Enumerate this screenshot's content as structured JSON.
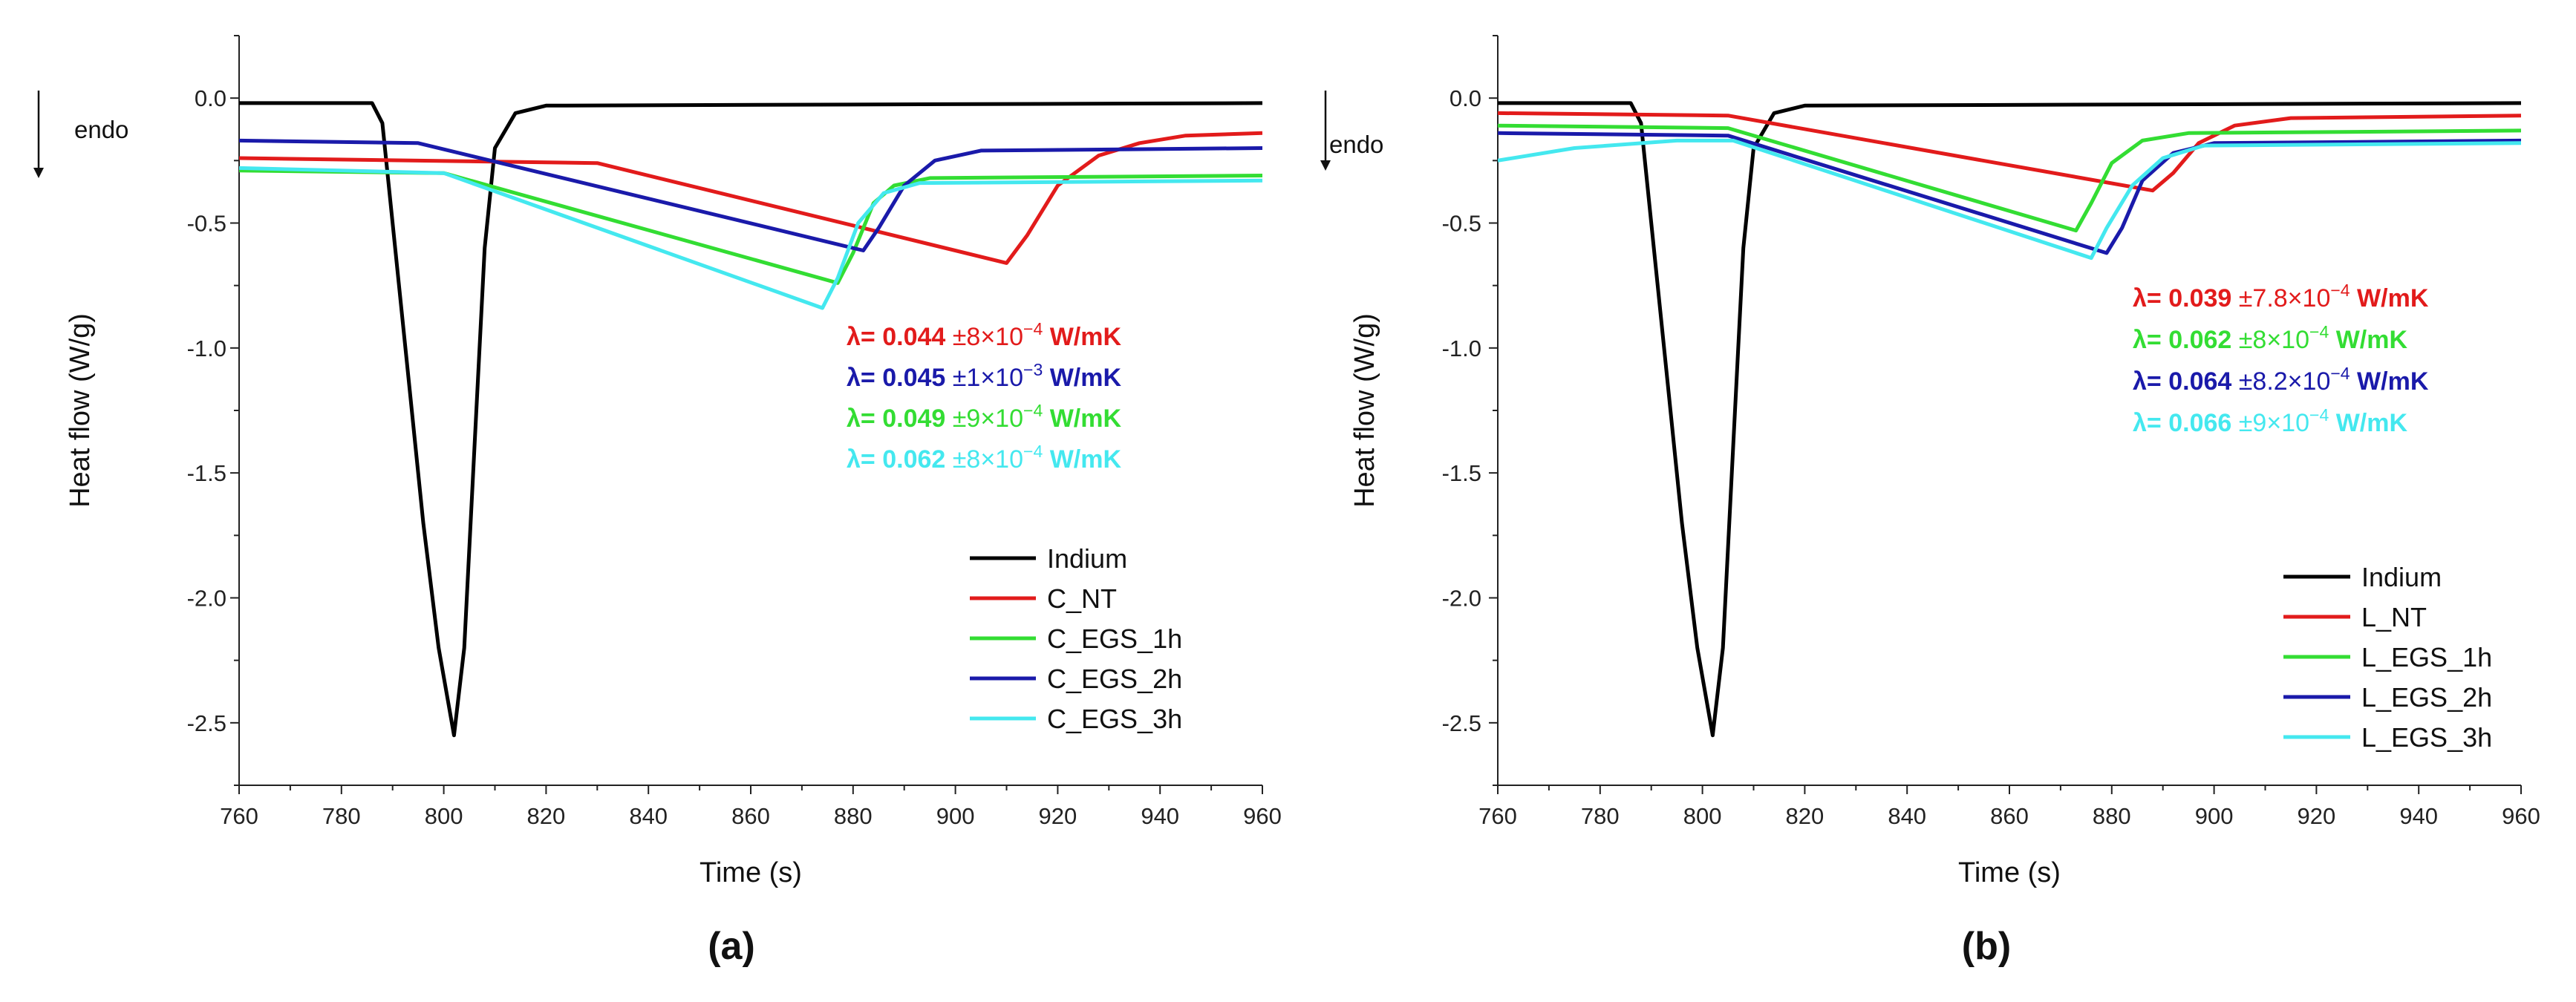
{
  "chart_data": [
    {
      "type": "line",
      "panel_label": "(a)",
      "xlabel": "Time (s)",
      "ylabel": "Heat flow (W/g)",
      "xlim": [
        760,
        960
      ],
      "ylim": [
        -2.75,
        0.25
      ],
      "xticks": [
        760,
        780,
        800,
        820,
        840,
        860,
        880,
        900,
        920,
        940,
        960
      ],
      "yticks": [
        0.0,
        -0.5,
        -1.0,
        -1.5,
        -2.0,
        -2.5
      ],
      "ytick_labels": [
        "0.0",
        "-0.5",
        "-1.0",
        "-1.5",
        "-2.0",
        "-2.5"
      ],
      "endo_label": "endo",
      "series": [
        {
          "name": "Indium",
          "color": "#000000",
          "points": [
            [
              760,
              -0.02
            ],
            [
              786,
              -0.02
            ],
            [
              788,
              -0.1
            ],
            [
              790,
              -0.5
            ],
            [
              793,
              -1.1
            ],
            [
              796,
              -1.7
            ],
            [
              799,
              -2.2
            ],
            [
              802,
              -2.55
            ],
            [
              804,
              -2.2
            ],
            [
              806,
              -1.4
            ],
            [
              808,
              -0.6
            ],
            [
              810,
              -0.2
            ],
            [
              814,
              -0.06
            ],
            [
              820,
              -0.03
            ],
            [
              960,
              -0.02
            ]
          ]
        },
        {
          "name": "C_NT",
          "color": "#e21b1b",
          "points": [
            [
              760,
              -0.24
            ],
            [
              830,
              -0.26
            ],
            [
              910,
              -0.66
            ],
            [
              914,
              -0.55
            ],
            [
              920,
              -0.35
            ],
            [
              928,
              -0.23
            ],
            [
              936,
              -0.18
            ],
            [
              945,
              -0.15
            ],
            [
              960,
              -0.14
            ]
          ]
        },
        {
          "name": "C_EGS_1h",
          "color": "#33dd33",
          "points": [
            [
              760,
              -0.29
            ],
            [
              800,
              -0.3
            ],
            [
              877,
              -0.74
            ],
            [
              880,
              -0.62
            ],
            [
              884,
              -0.42
            ],
            [
              888,
              -0.35
            ],
            [
              895,
              -0.32
            ],
            [
              960,
              -0.31
            ]
          ]
        },
        {
          "name": "C_EGS_2h",
          "color": "#1a1aaa",
          "points": [
            [
              760,
              -0.17
            ],
            [
              795,
              -0.18
            ],
            [
              882,
              -0.61
            ],
            [
              885,
              -0.52
            ],
            [
              890,
              -0.35
            ],
            [
              896,
              -0.25
            ],
            [
              905,
              -0.21
            ],
            [
              960,
              -0.2
            ]
          ]
        },
        {
          "name": "C_EGS_3h",
          "color": "#44e8ef",
          "points": [
            [
              760,
              -0.28
            ],
            [
              800,
              -0.3
            ],
            [
              874,
              -0.84
            ],
            [
              877,
              -0.72
            ],
            [
              881,
              -0.5
            ],
            [
              886,
              -0.38
            ],
            [
              893,
              -0.34
            ],
            [
              960,
              -0.33
            ]
          ]
        }
      ],
      "annotations": [
        {
          "value": "0.044",
          "uncertainty_mantissa": "8",
          "exponent": "−4",
          "color": "#e21b1b"
        },
        {
          "value": "0.045",
          "uncertainty_mantissa": "1",
          "exponent": "−3",
          "color": "#1a1aaa"
        },
        {
          "value": "0.049",
          "uncertainty_mantissa": "9",
          "exponent": "−4",
          "color": "#33dd33"
        },
        {
          "value": "0.062",
          "uncertainty_mantissa": "8",
          "exponent": "−4",
          "color": "#44e8ef"
        }
      ]
    },
    {
      "type": "line",
      "panel_label": "(b)",
      "xlabel": "Time (s)",
      "ylabel": "Heat flow (W/g)",
      "xlim": [
        760,
        960
      ],
      "ylim": [
        -2.75,
        0.25
      ],
      "xticks": [
        760,
        780,
        800,
        820,
        840,
        860,
        880,
        900,
        920,
        940,
        960
      ],
      "yticks": [
        0.0,
        -0.5,
        -1.0,
        -1.5,
        -2.0,
        -2.5
      ],
      "ytick_labels": [
        "0.0",
        "-0.5",
        "-1.0",
        "-1.5",
        "-2.0",
        "-2.5"
      ],
      "endo_label": "endo",
      "series": [
        {
          "name": "Indium",
          "color": "#000000",
          "points": [
            [
              760,
              -0.02
            ],
            [
              786,
              -0.02
            ],
            [
              788,
              -0.1
            ],
            [
              790,
              -0.5
            ],
            [
              793,
              -1.1
            ],
            [
              796,
              -1.7
            ],
            [
              799,
              -2.2
            ],
            [
              802,
              -2.55
            ],
            [
              804,
              -2.2
            ],
            [
              806,
              -1.4
            ],
            [
              808,
              -0.6
            ],
            [
              810,
              -0.2
            ],
            [
              814,
              -0.06
            ],
            [
              820,
              -0.03
            ],
            [
              960,
              -0.02
            ]
          ]
        },
        {
          "name": "L_NT",
          "color": "#e21b1b",
          "points": [
            [
              760,
              -0.06
            ],
            [
              805,
              -0.07
            ],
            [
              888,
              -0.37
            ],
            [
              892,
              -0.3
            ],
            [
              897,
              -0.18
            ],
            [
              904,
              -0.11
            ],
            [
              915,
              -0.08
            ],
            [
              960,
              -0.07
            ]
          ]
        },
        {
          "name": "L_EGS_1h",
          "color": "#33dd33",
          "points": [
            [
              760,
              -0.11
            ],
            [
              805,
              -0.12
            ],
            [
              873,
              -0.53
            ],
            [
              876,
              -0.42
            ],
            [
              880,
              -0.26
            ],
            [
              886,
              -0.17
            ],
            [
              895,
              -0.14
            ],
            [
              960,
              -0.13
            ]
          ]
        },
        {
          "name": "L_EGS_2h",
          "color": "#1a1aaa",
          "points": [
            [
              760,
              -0.14
            ],
            [
              805,
              -0.15
            ],
            [
              879,
              -0.62
            ],
            [
              882,
              -0.52
            ],
            [
              886,
              -0.33
            ],
            [
              892,
              -0.22
            ],
            [
              900,
              -0.18
            ],
            [
              960,
              -0.17
            ]
          ]
        },
        {
          "name": "L_EGS_3h",
          "color": "#44e8ef",
          "points": [
            [
              760,
              -0.25
            ],
            [
              775,
              -0.2
            ],
            [
              795,
              -0.17
            ],
            [
              806,
              -0.17
            ],
            [
              876,
              -0.64
            ],
            [
              879,
              -0.52
            ],
            [
              884,
              -0.35
            ],
            [
              890,
              -0.24
            ],
            [
              898,
              -0.19
            ],
            [
              960,
              -0.18
            ]
          ]
        }
      ],
      "annotations": [
        {
          "value": "0.039",
          "uncertainty_mantissa": "7.8",
          "exponent": "−4",
          "color": "#e21b1b"
        },
        {
          "value": "0.062",
          "uncertainty_mantissa": "8",
          "exponent": "−4",
          "color": "#33dd33"
        },
        {
          "value": "0.064",
          "uncertainty_mantissa": "8.2",
          "exponent": "−4",
          "color": "#1a1aaa"
        },
        {
          "value": "0.066",
          "uncertainty_mantissa": "9",
          "exponent": "−4",
          "color": "#44e8ef"
        }
      ]
    }
  ],
  "lambda_symbol": "λ=",
  "plus_minus": "±",
  "times_ten": "×10",
  "unit": "W/mK"
}
